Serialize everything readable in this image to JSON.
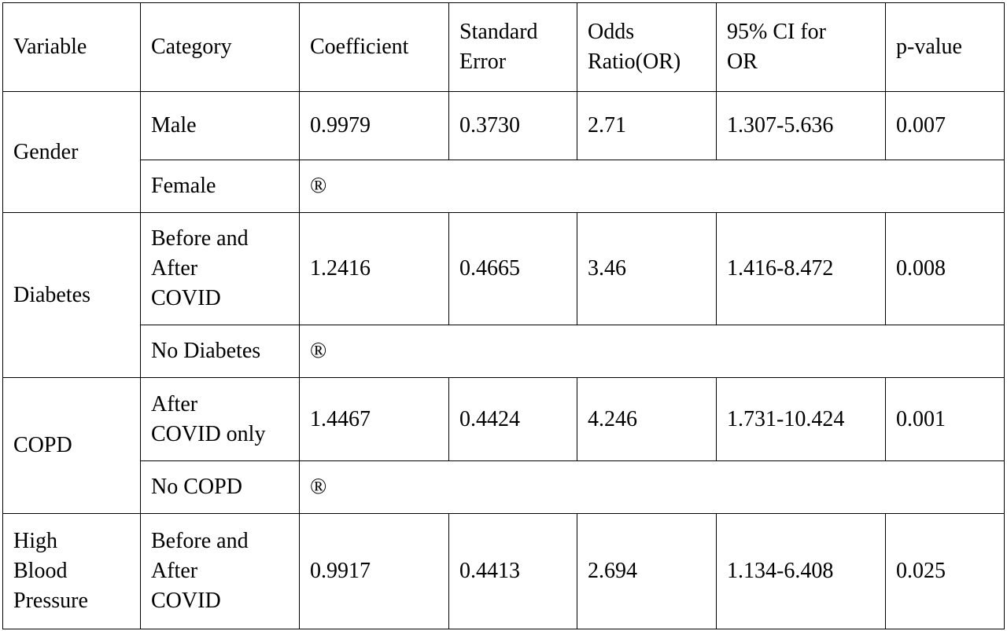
{
  "table": {
    "header": [
      "Variable",
      "Category",
      "Coefficient",
      "Standard\nError",
      "Odds\nRatio(OR)",
      "95% CI for\nOR",
      "p-value"
    ],
    "groups": [
      {
        "variable": "Gender",
        "rows": [
          [
            "Male",
            "0.9979",
            "0.3730",
            "2.71",
            "1.307-5.636",
            "0.007"
          ],
          [
            "Female",
            "®"
          ]
        ]
      },
      {
        "variable": "Diabetes",
        "rows": [
          [
            "Before and\nAfter\nCOVID",
            "1.2416",
            "0.4665",
            "3.46",
            "1.416-8.472",
            "0.008"
          ],
          [
            "No Diabetes",
            "®"
          ]
        ]
      },
      {
        "variable": "COPD",
        "rows": [
          [
            "After\nCOVID only",
            "1.4467",
            "0.4424",
            "4.246",
            "1.731-10.424",
            "0.001"
          ],
          [
            "No COPD",
            "®"
          ]
        ]
      },
      {
        "variable": "High\nBlood\nPressure",
        "rows": [
          [
            "Before and\nAfter\nCOVID",
            "0.9917",
            "0.4413",
            "2.694",
            "1.134-6.408",
            "0.025"
          ]
        ]
      }
    ]
  }
}
